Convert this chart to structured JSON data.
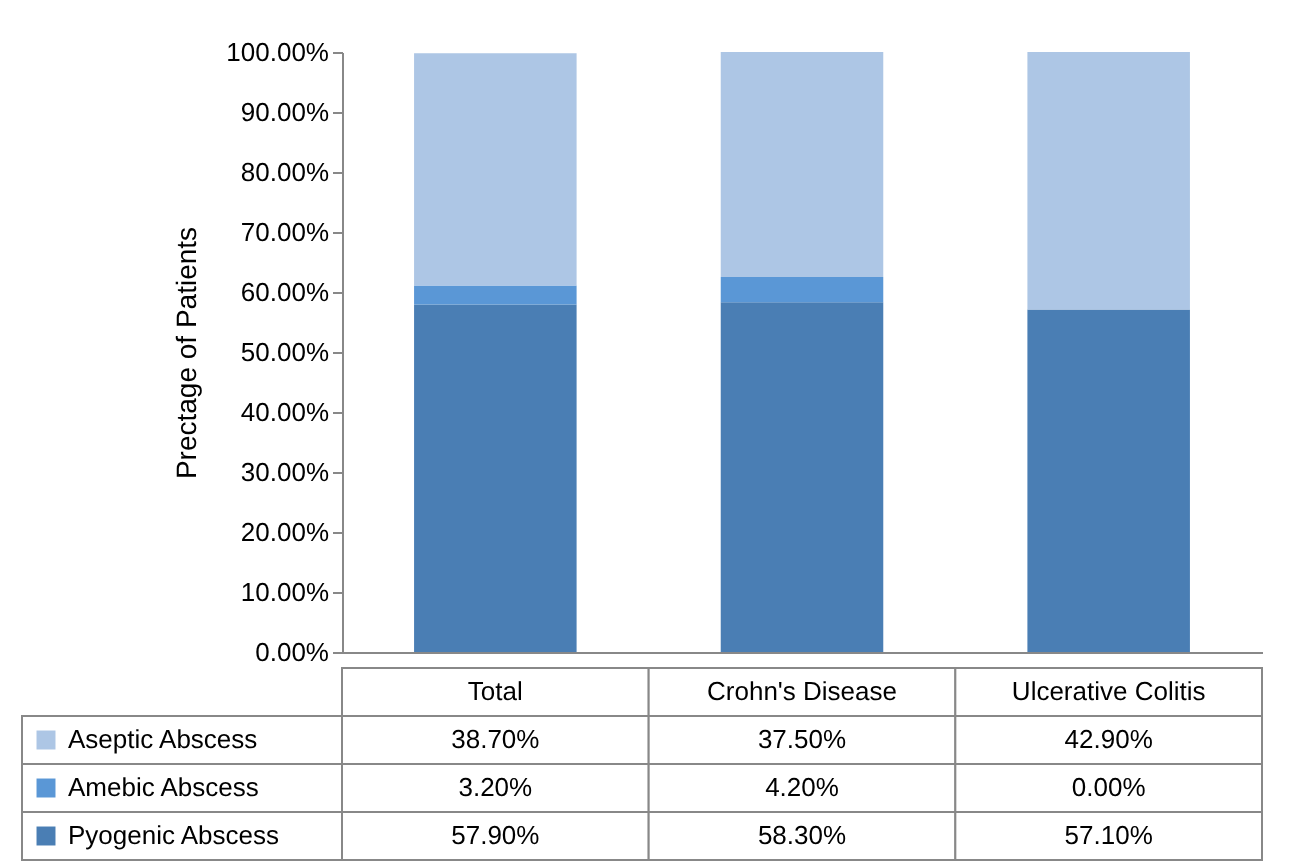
{
  "chart_data": {
    "type": "bar",
    "stacked": true,
    "ylabel": "Prectage of Patients",
    "categories": [
      "Total",
      "Crohn's Disease",
      "Ulcerative Colitis"
    ],
    "series": [
      {
        "name": "Pyogenic Abscess",
        "color": "#4a7eb4",
        "values": [
          57.9,
          58.3,
          57.1
        ],
        "value_labels": [
          "57.90%",
          "58.30%",
          "57.10%"
        ]
      },
      {
        "name": "Amebic Abscess",
        "color": "#5a97d6",
        "values": [
          3.2,
          4.2,
          0
        ],
        "value_labels": [
          "3.20%",
          "4.20%",
          "0.00%"
        ]
      },
      {
        "name": "Aseptic Abscess",
        "color": "#adc6e5",
        "values": [
          38.7,
          37.5,
          42.9
        ],
        "value_labels": [
          "38.70%",
          "37.50%",
          "42.90%"
        ]
      }
    ],
    "ylim": [
      0,
      100
    ],
    "yticks": [
      {
        "value": 0,
        "label": "0.00%"
      },
      {
        "value": 10,
        "label": "10.00%"
      },
      {
        "value": 20,
        "label": "20.00%"
      },
      {
        "value": 30,
        "label": "30.00%"
      },
      {
        "value": 40,
        "label": "40.00%"
      },
      {
        "value": 50,
        "label": "50.00%"
      },
      {
        "value": 60,
        "label": "60.00%"
      },
      {
        "value": 70,
        "label": "70.00%"
      },
      {
        "value": 80,
        "label": "80.00%"
      },
      {
        "value": 90,
        "label": "90.00%"
      },
      {
        "value": 100,
        "label": "100.00%"
      }
    ],
    "legend": "bottom"
  }
}
